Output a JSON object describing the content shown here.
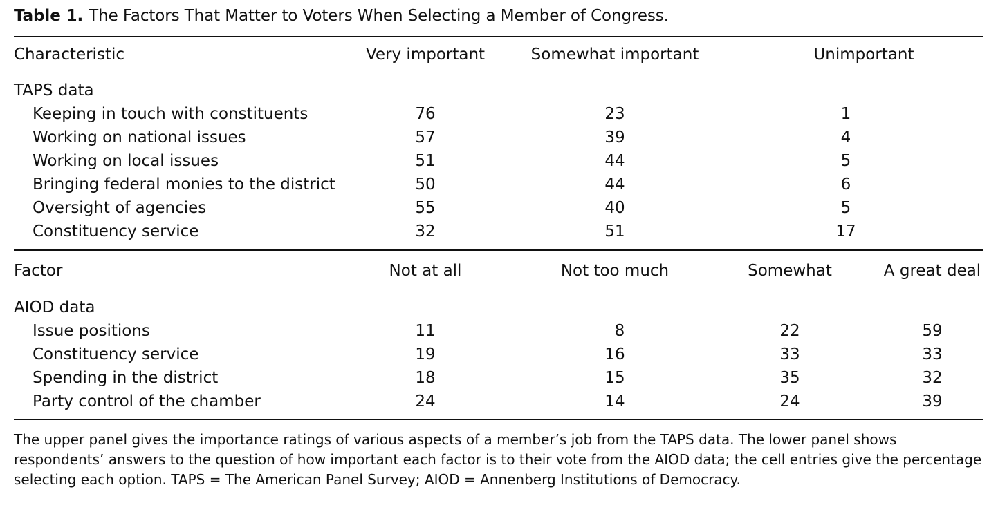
{
  "caption": {
    "label": "Table 1.",
    "title": "The Factors That Matter to Voters When Selecting a Member of Congress."
  },
  "panel1": {
    "header": {
      "characteristic": "Characteristic",
      "very": "Very important",
      "somewhat": "Somewhat important",
      "unimportant": "Unimportant"
    },
    "section": "TAPS data",
    "rows": [
      {
        "label": "Keeping in touch with constituents",
        "very": "76",
        "somewhat": "23",
        "unimportant": "1"
      },
      {
        "label": "Working on national issues",
        "very": "57",
        "somewhat": "39",
        "unimportant": "4"
      },
      {
        "label": "Working on local issues",
        "very": "51",
        "somewhat": "44",
        "unimportant": "5"
      },
      {
        "label": "Bringing federal monies to the district",
        "very": "50",
        "somewhat": "44",
        "unimportant": "6"
      },
      {
        "label": "Oversight of agencies",
        "very": "55",
        "somewhat": "40",
        "unimportant": "5"
      },
      {
        "label": "Constituency service",
        "very": "32",
        "somewhat": "51",
        "unimportant": "17"
      }
    ]
  },
  "panel2": {
    "header": {
      "factor": "Factor",
      "not_at_all": "Not at all",
      "not_too_much": "Not too much",
      "somewhat": "Somewhat",
      "great_deal": "A great deal"
    },
    "section": "AIOD data",
    "rows": [
      {
        "label": "Issue positions",
        "not_at_all": "11",
        "not_too_much": "8",
        "somewhat": "22",
        "great_deal": "59"
      },
      {
        "label": "Constituency service",
        "not_at_all": "19",
        "not_too_much": "16",
        "somewhat": "33",
        "great_deal": "33"
      },
      {
        "label": "Spending in the district",
        "not_at_all": "18",
        "not_too_much": "15",
        "somewhat": "35",
        "great_deal": "32"
      },
      {
        "label": "Party control of the chamber",
        "not_at_all": "24",
        "not_too_much": "14",
        "somewhat": "24",
        "great_deal": "39"
      }
    ]
  },
  "note": "The upper panel gives the importance ratings of various aspects of a member’s job from the TAPS data. The lower panel shows respondents’ answers to the question of how important each factor is to their vote from the AIOD data; the cell entries give the percentage selecting each option. TAPS = The American Panel Survey; AIOD = Annenberg Institutions of Democracy."
}
